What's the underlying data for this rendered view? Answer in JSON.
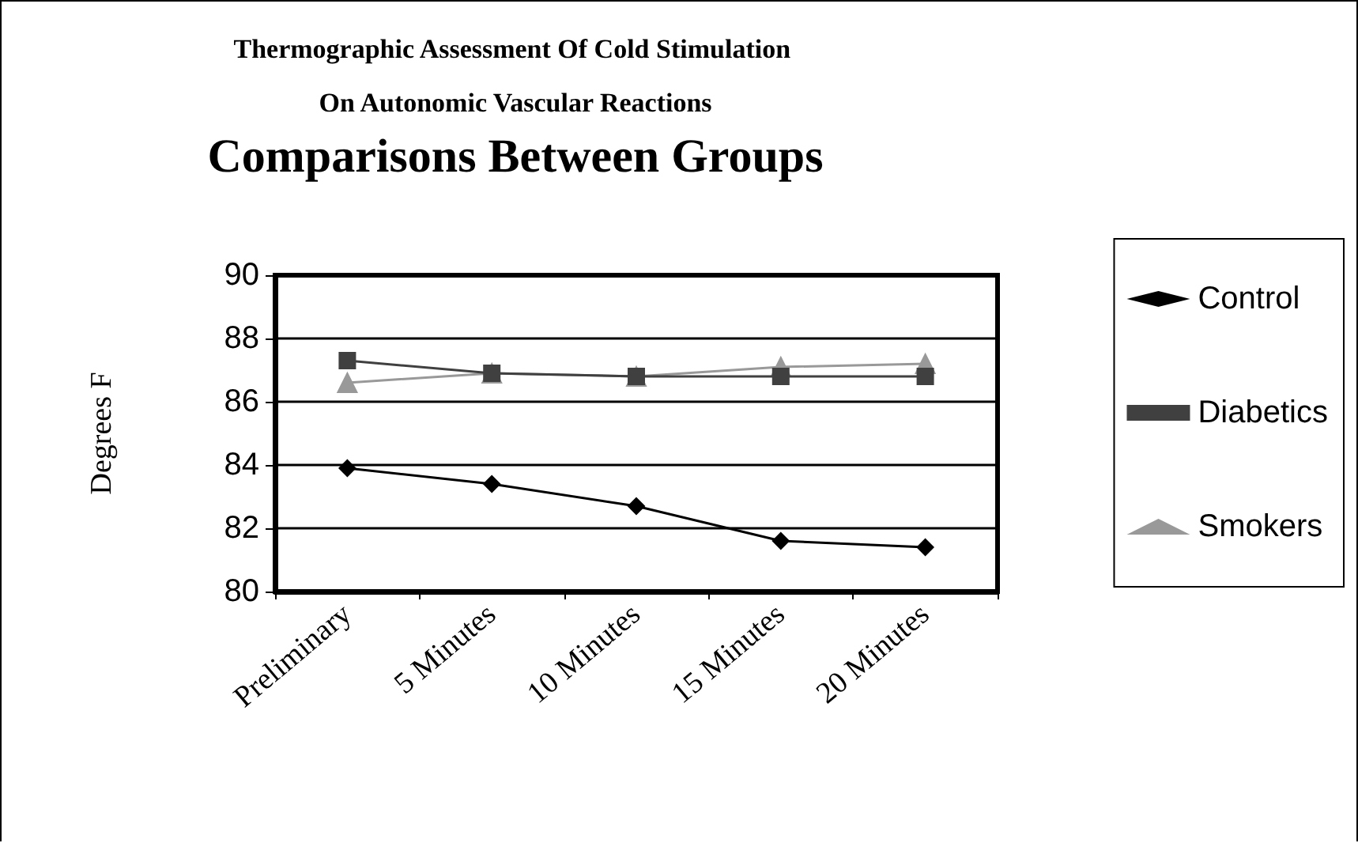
{
  "chart_data": {
    "type": "line",
    "title": "Thermographic Assessment Of Cold Stimulation On Autonomic Vascular Reactions",
    "subtitle": "Comparisons Between Groups",
    "ylabel": "Degrees F",
    "categories": [
      "Preliminary",
      "5 Minutes",
      "10 Minutes",
      "15 Minutes",
      "20 Minutes"
    ],
    "series": [
      {
        "name": "Control",
        "color": "#000000",
        "marker": "diamond",
        "values": [
          83.9,
          83.4,
          82.7,
          81.6,
          81.4
        ]
      },
      {
        "name": "Diabetics",
        "color": "#404040",
        "marker": "square",
        "values": [
          87.3,
          86.9,
          86.8,
          86.8,
          86.8
        ]
      },
      {
        "name": "Smokers",
        "color": "#999999",
        "marker": "triangle",
        "values": [
          86.6,
          86.9,
          86.8,
          87.1,
          87.2
        ]
      }
    ],
    "ylim": [
      80,
      90
    ],
    "yticks": [
      80,
      82,
      84,
      86,
      88,
      90
    ],
    "grid": "y",
    "legend": "right"
  }
}
